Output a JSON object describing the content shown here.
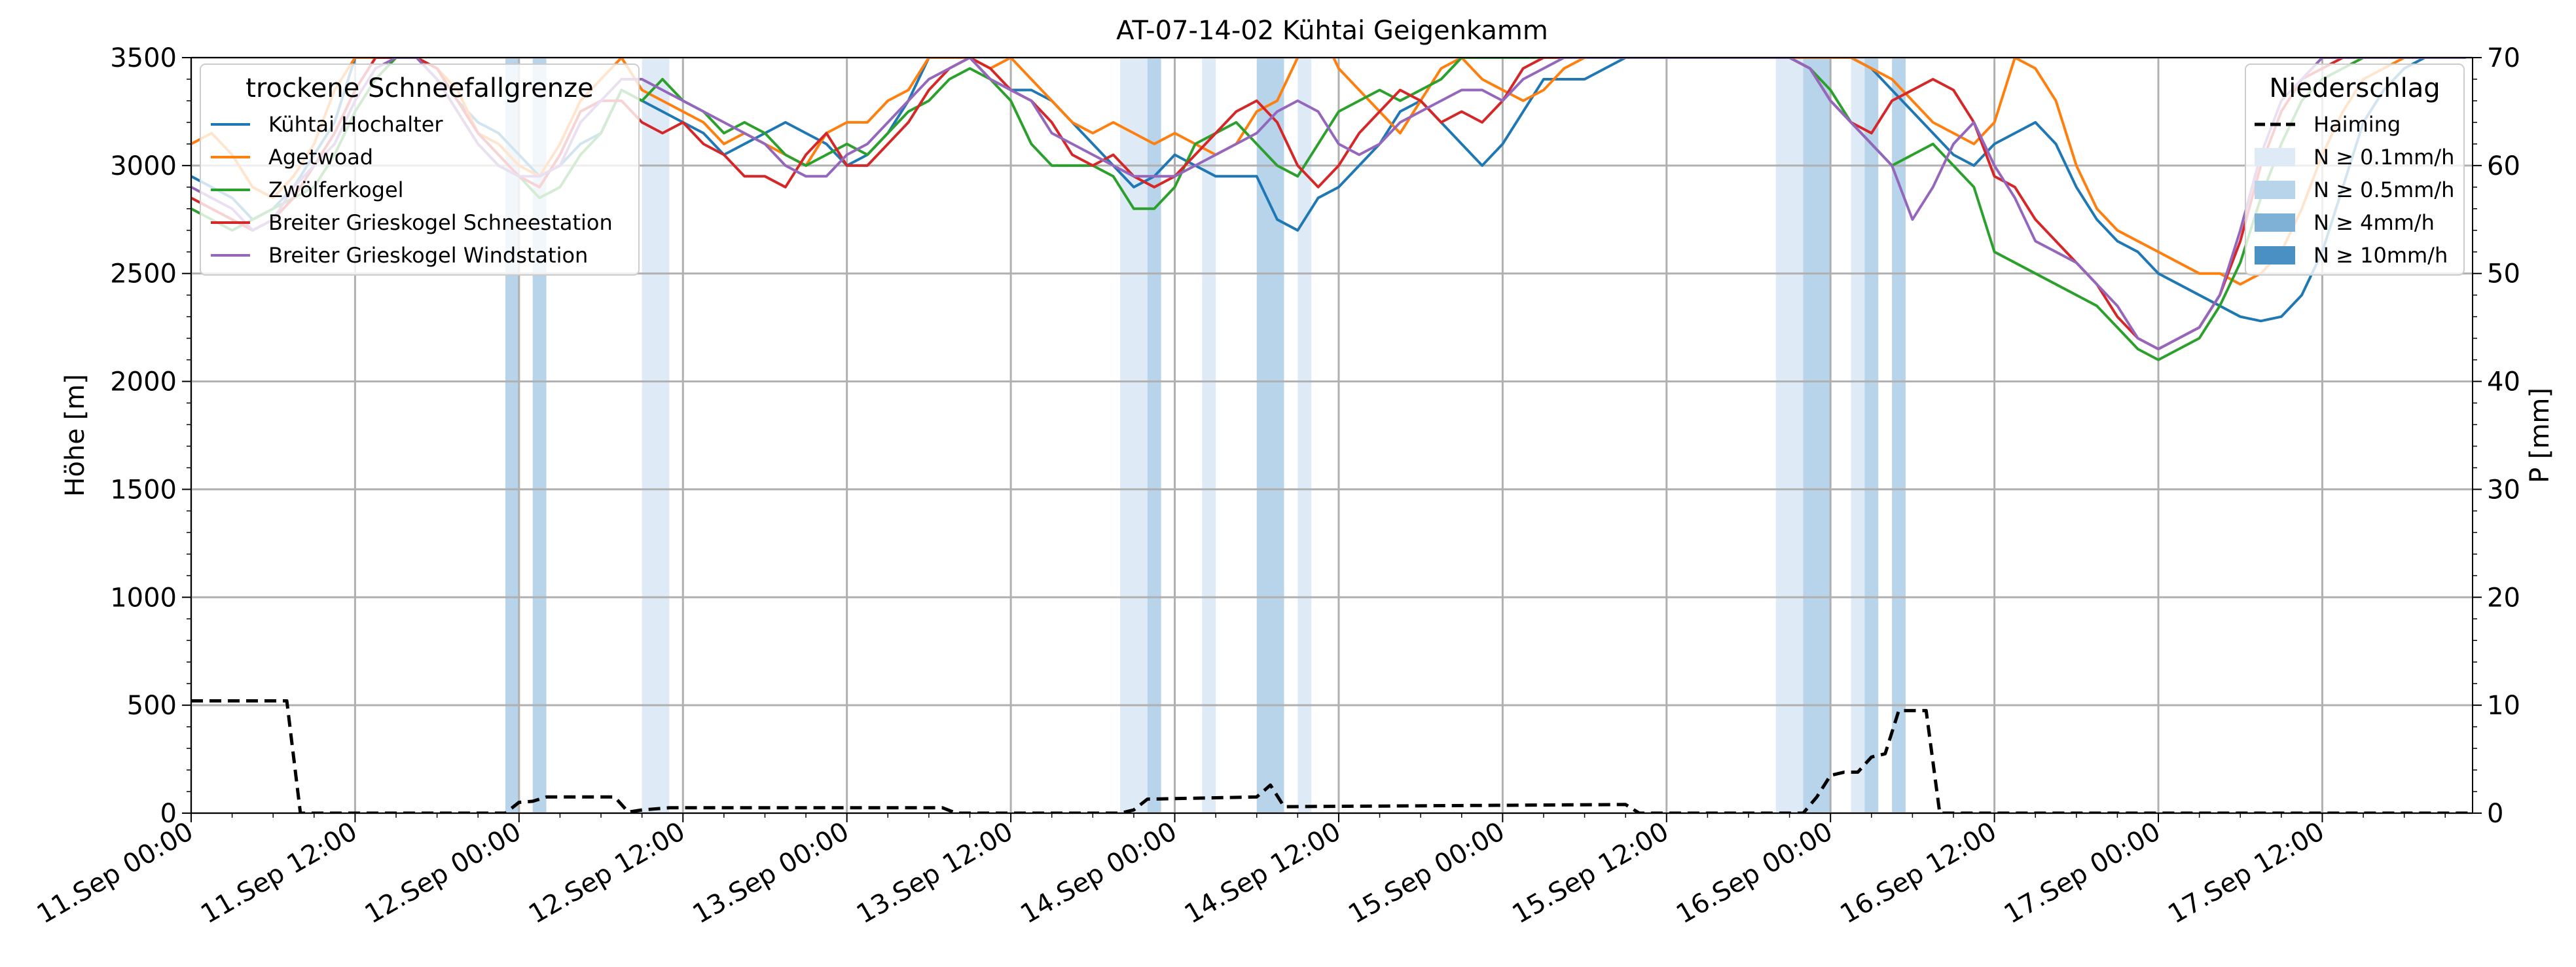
{
  "chart_data": {
    "type": "line",
    "title": "AT-07-14-02 Kühtai Geigenkamm",
    "ylabel_left": "Höhe [m]",
    "ylabel_right": "P [mm]",
    "x_range": [
      "11.Sep 00:00",
      "17.Sep 23:00"
    ],
    "x_ticks": [
      "11.Sep 00:00",
      "11.Sep 12:00",
      "12.Sep 00:00",
      "12.Sep 12:00",
      "13.Sep 00:00",
      "13.Sep 12:00",
      "14.Sep 00:00",
      "14.Sep 12:00",
      "15.Sep 00:00",
      "15.Sep 12:00",
      "16.Sep 00:00",
      "16.Sep 12:00",
      "17.Sep 00:00",
      "17.Sep 12:00"
    ],
    "y_left_range": [
      0,
      3500
    ],
    "y_left_ticks": [
      0,
      500,
      1000,
      1500,
      2000,
      2500,
      3000,
      3500
    ],
    "y_right_range": [
      0,
      70
    ],
    "y_right_ticks": [
      0,
      10,
      20,
      30,
      40,
      50,
      60,
      70
    ],
    "grid": true,
    "legend_snow": {
      "title": "trockene Schneefallgrenze",
      "placement": "top-left",
      "entries": [
        {
          "name": "Kühtai Hochalter",
          "color": "#1f77b4"
        },
        {
          "name": "Agetwoad",
          "color": "#ff7f0e"
        },
        {
          "name": "Zwölferkogel",
          "color": "#2ca02c"
        },
        {
          "name": "Breiter Grieskogel Schneestation",
          "color": "#d62728"
        },
        {
          "name": "Breiter Grieskogel Windstation",
          "color": "#9467bd"
        }
      ]
    },
    "legend_precip": {
      "title": "Niederschlag",
      "placement": "top-right",
      "entries": [
        {
          "name": "Haiming",
          "style": "dashed",
          "color": "#000000"
        },
        {
          "name": "N ≥ 0.1mm/h",
          "color": "#deebf7"
        },
        {
          "name": "N ≥ 0.5mm/h",
          "color": "#b7d4ea"
        },
        {
          "name": "N ≥ 4mm/h",
          "color": "#7fb1d6"
        },
        {
          "name": "N ≥ 10mm/h",
          "color": "#4a90c2"
        }
      ]
    },
    "precip_bands": [
      {
        "start_h": 46.0,
        "end_h": 48.0,
        "level": 1
      },
      {
        "start_h": 50.0,
        "end_h": 52.0,
        "level": 1
      },
      {
        "start_h": 66.0,
        "end_h": 70.0,
        "level": 0
      },
      {
        "start_h": 136.0,
        "end_h": 140.0,
        "level": 0
      },
      {
        "start_h": 140.0,
        "end_h": 142.0,
        "level": 1
      },
      {
        "start_h": 148.0,
        "end_h": 150.0,
        "level": 0
      },
      {
        "start_h": 156.0,
        "end_h": 160.0,
        "level": 1
      },
      {
        "start_h": 162.0,
        "end_h": 164.0,
        "level": 0
      },
      {
        "start_h": 232.0,
        "end_h": 236.0,
        "level": 0
      },
      {
        "start_h": 236.0,
        "end_h": 240.0,
        "level": 1
      },
      {
        "start_h": 243.0,
        "end_h": 245.0,
        "level": 0
      },
      {
        "start_h": 245.0,
        "end_h": 247.0,
        "level": 1
      },
      {
        "start_h": 249.0,
        "end_h": 251.0,
        "level": 1
      }
    ],
    "precip_series": {
      "name": "Haiming",
      "x_h": [
        0,
        14,
        16,
        46,
        48,
        50,
        52,
        62,
        64,
        66,
        70,
        110,
        112,
        136,
        138,
        140,
        156,
        158,
        160,
        210,
        212,
        236,
        238,
        240,
        242,
        244,
        246,
        248,
        250,
        252,
        254,
        256,
        258,
        324,
        335
      ],
      "values": [
        10.4,
        10.4,
        0,
        0,
        1,
        1.1,
        1.5,
        1.5,
        0.1,
        0.3,
        0.5,
        0.5,
        0,
        0,
        0.3,
        1.3,
        1.5,
        2.6,
        0.6,
        0.8,
        0,
        0,
        1.5,
        3.5,
        3.8,
        3.8,
        5.2,
        5.5,
        9.5,
        9.5,
        9.5,
        0,
        0,
        0,
        0
      ]
    },
    "series_x_start_h": 0,
    "series_x_step_h": 3,
    "series": [
      {
        "name": "Kühtai Hochalter",
        "color": "#1f77b4",
        "values": [
          2950,
          2900,
          2850,
          2750,
          2800,
          2900,
          3050,
          3200,
          3500,
          3500,
          3500,
          3500,
          3450,
          3300,
          3200,
          3150,
          3050,
          2950,
          3000,
          3100,
          3150,
          3350,
          3300,
          3250,
          3200,
          3150,
          3050,
          3100,
          3150,
          3200,
          3150,
          3100,
          3000,
          3050,
          3150,
          3300,
          3500,
          3500,
          3500,
          3400,
          3350,
          3350,
          3300,
          3200,
          3100,
          3000,
          2900,
          2950,
          3050,
          3000,
          2950,
          2950,
          2950,
          2750,
          2700,
          2850,
          2900,
          3000,
          3100,
          3250,
          3300,
          3200,
          3100,
          3000,
          3100,
          3250,
          3400,
          3400,
          3400,
          3450,
          3500,
          3500,
          3500,
          3500,
          3500,
          3500,
          3500,
          3500,
          3500,
          3500,
          3500,
          3500,
          3450,
          3350,
          3250,
          3150,
          3050,
          3000,
          3100,
          3150,
          3200,
          3100,
          2900,
          2750,
          2650,
          2600,
          2500,
          2450,
          2400,
          2350,
          2300,
          2280,
          2300,
          2400,
          2600,
          2900,
          3200,
          3350,
          3450,
          3500,
          3500,
          3500
        ]
      },
      {
        "name": "Agetwoad",
        "color": "#ff7f0e",
        "values": [
          3100,
          3150,
          3050,
          2900,
          2850,
          2950,
          3100,
          3350,
          3500,
          3500,
          3500,
          3500,
          3450,
          3350,
          3150,
          3100,
          3000,
          2950,
          3100,
          3300,
          3400,
          3500,
          3350,
          3300,
          3250,
          3200,
          3100,
          3150,
          3100,
          3050,
          3000,
          3150,
          3200,
          3200,
          3300,
          3350,
          3500,
          3500,
          3500,
          3450,
          3500,
          3400,
          3300,
          3200,
          3150,
          3200,
          3150,
          3100,
          3150,
          3100,
          3050,
          3100,
          3250,
          3300,
          3500,
          3650,
          3450,
          3350,
          3250,
          3150,
          3300,
          3450,
          3500,
          3400,
          3350,
          3300,
          3350,
          3450,
          3500,
          3500,
          3500,
          3500,
          3500,
          3500,
          3500,
          3500,
          3500,
          3500,
          3500,
          3500,
          3500,
          3500,
          3450,
          3400,
          3300,
          3200,
          3150,
          3100,
          3200,
          3500,
          3450,
          3300,
          3000,
          2800,
          2700,
          2650,
          2600,
          2550,
          2500,
          2500,
          2450,
          2500,
          2600,
          2800,
          3050,
          3250,
          3400,
          3450,
          3500,
          3500,
          3500,
          3500
        ]
      },
      {
        "name": "Zwölferkogel",
        "color": "#2ca02c",
        "values": [
          2800,
          2750,
          2700,
          2750,
          2800,
          2850,
          2900,
          3050,
          3250,
          3400,
          3500,
          3500,
          3400,
          3250,
          3100,
          3000,
          2950,
          2850,
          2900,
          3050,
          3150,
          3350,
          3300,
          3400,
          3300,
          3250,
          3150,
          3200,
          3150,
          3050,
          3000,
          3050,
          3100,
          3050,
          3150,
          3250,
          3300,
          3400,
          3450,
          3400,
          3300,
          3100,
          3000,
          3000,
          3000,
          2950,
          2800,
          2800,
          2900,
          3100,
          3150,
          3200,
          3100,
          3000,
          2950,
          3100,
          3250,
          3300,
          3350,
          3300,
          3350,
          3400,
          3500,
          3500,
          3500,
          3500,
          3500,
          3500,
          3500,
          3500,
          3500,
          3500,
          3500,
          3500,
          3500,
          3500,
          3500,
          3500,
          3500,
          3450,
          3350,
          3200,
          3100,
          3000,
          3050,
          3100,
          3000,
          2900,
          2600,
          2550,
          2500,
          2450,
          2400,
          2350,
          2250,
          2150,
          2100,
          2150,
          2200,
          2350,
          2550,
          2850,
          3100,
          3300,
          3400,
          3450,
          3500,
          3500,
          3500,
          3500,
          3500,
          3500
        ]
      },
      {
        "name": "Breiter Grieskogel Schneestation",
        "color": "#d62728",
        "values": [
          2850,
          2800,
          2750,
          2700,
          2750,
          2850,
          3000,
          3150,
          3350,
          3500,
          3500,
          3500,
          3450,
          3300,
          3150,
          3050,
          2950,
          2900,
          3050,
          3250,
          3300,
          3300,
          3200,
          3150,
          3200,
          3100,
          3050,
          2950,
          2950,
          2900,
          3050,
          3150,
          3000,
          3000,
          3100,
          3200,
          3350,
          3450,
          3500,
          3450,
          3350,
          3300,
          3200,
          3050,
          3000,
          3050,
          2950,
          2900,
          2950,
          3050,
          3150,
          3250,
          3300,
          3200,
          3000,
          2900,
          3000,
          3150,
          3250,
          3350,
          3300,
          3200,
          3250,
          3200,
          3300,
          3450,
          3500,
          3500,
          3500,
          3500,
          3500,
          3500,
          3500,
          3500,
          3500,
          3500,
          3500,
          3500,
          3500,
          3450,
          3300,
          3200,
          3150,
          3300,
          3350,
          3400,
          3350,
          3200,
          2950,
          2900,
          2750,
          2650,
          2550,
          2450,
          2300,
          2200,
          2150,
          2200,
          2250,
          2400,
          2650,
          3000,
          3250,
          3400,
          3450,
          3500,
          3500,
          3500,
          3500,
          3500,
          3500,
          3500
        ]
      },
      {
        "name": "Breiter Grieskogel Windstation",
        "color": "#9467bd",
        "values": [
          2900,
          2850,
          2800,
          2700,
          2750,
          2900,
          3000,
          3100,
          3300,
          3450,
          3500,
          3500,
          3400,
          3250,
          3100,
          3000,
          2950,
          2950,
          3000,
          3200,
          3300,
          3400,
          3400,
          3350,
          3300,
          3250,
          3200,
          3150,
          3100,
          3000,
          2950,
          2950,
          3050,
          3100,
          3200,
          3300,
          3400,
          3450,
          3500,
          3400,
          3350,
          3300,
          3150,
          3100,
          3050,
          3000,
          2950,
          2950,
          2950,
          3000,
          3050,
          3100,
          3150,
          3250,
          3300,
          3250,
          3100,
          3050,
          3100,
          3200,
          3250,
          3300,
          3350,
          3350,
          3300,
          3400,
          3450,
          3500,
          3500,
          3500,
          3500,
          3500,
          3500,
          3500,
          3500,
          3500,
          3500,
          3500,
          3500,
          3450,
          3300,
          3200,
          3100,
          3000,
          2750,
          2900,
          3100,
          3200,
          3000,
          2850,
          2650,
          2600,
          2550,
          2450,
          2350,
          2200,
          2150,
          2200,
          2250,
          2400,
          2700,
          3050,
          3300,
          3400,
          3500,
          3500,
          3500,
          3500,
          3500,
          3500,
          3500,
          3500
        ]
      }
    ]
  }
}
